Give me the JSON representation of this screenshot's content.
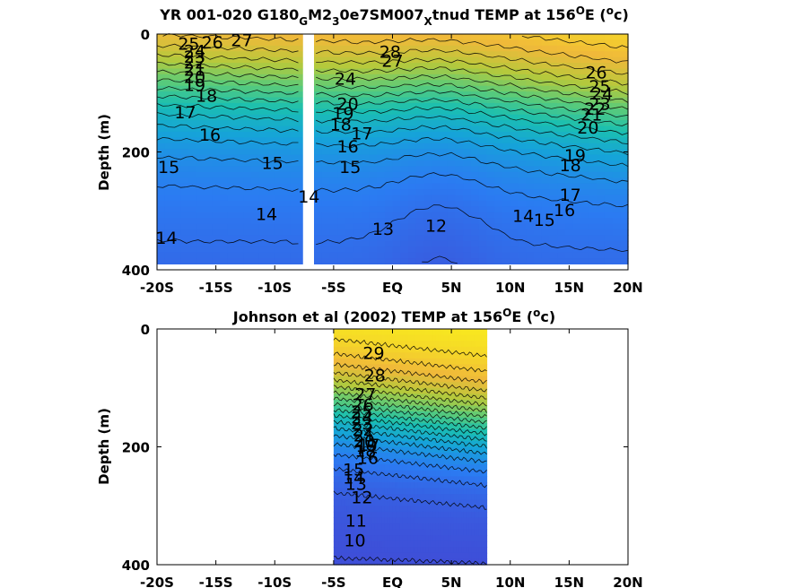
{
  "chart_data": [
    {
      "type": "heatmap",
      "title": {
        "pre": "YR 001-020 G180",
        "sub1": "G",
        "mid1": "M2",
        "sub2": "3",
        "mid2": "0e7SM007",
        "sub3": "X",
        "mid3": "tnud TEMP at 156",
        "sup1": "O",
        "mid4": "E (",
        "sup2": "o",
        "post": "c)"
      },
      "ylabel": "Depth (m)",
      "xlim": [
        -20,
        20
      ],
      "ylim": [
        0,
        400
      ],
      "y_reversed": true,
      "yticks": [
        "0",
        "200",
        "400"
      ],
      "xticks": [
        "-20S",
        "-15S",
        "-10S",
        "-5S",
        "EQ",
        "5N",
        "10N",
        "15N",
        "20N"
      ],
      "data_extent": {
        "lat_min": -20,
        "lat_max": 20,
        "depth_max": 390,
        "gap_lat": [
          -7.6,
          -6.8
        ]
      },
      "colormap": [
        "#3e4fd8",
        "#2b7bf2",
        "#16a3d9",
        "#1bbfb0",
        "#5ccb78",
        "#b5c93c",
        "#f0b93a",
        "#f8e81f"
      ],
      "temp_range": [
        10,
        29
      ],
      "contour_labels": [
        {
          "text": "25",
          "lat": -17.3,
          "depth": 16
        },
        {
          "text": "26",
          "lat": -15.3,
          "depth": 14
        },
        {
          "text": "27",
          "lat": -12.8,
          "depth": 10
        },
        {
          "text": "24",
          "lat": -16.8,
          "depth": 28
        },
        {
          "text": "23",
          "lat": -16.8,
          "depth": 38
        },
        {
          "text": "22",
          "lat": -16.8,
          "depth": 48
        },
        {
          "text": "21",
          "lat": -16.8,
          "depth": 60
        },
        {
          "text": "20",
          "lat": -16.8,
          "depth": 72
        },
        {
          "text": "19",
          "lat": -16.8,
          "depth": 86
        },
        {
          "text": "18",
          "lat": -15.8,
          "depth": 104
        },
        {
          "text": "17",
          "lat": -17.6,
          "depth": 132
        },
        {
          "text": "16",
          "lat": -15.5,
          "depth": 170
        },
        {
          "text": "15",
          "lat": -19.0,
          "depth": 225
        },
        {
          "text": "15",
          "lat": -10.2,
          "depth": 218
        },
        {
          "text": "14",
          "lat": -10.7,
          "depth": 305
        },
        {
          "text": "14",
          "lat": -19.2,
          "depth": 345
        },
        {
          "text": "14",
          "lat": -7.1,
          "depth": 275
        },
        {
          "text": "28",
          "lat": -0.2,
          "depth": 30
        },
        {
          "text": "27",
          "lat": 0.0,
          "depth": 45
        },
        {
          "text": "24",
          "lat": -4.0,
          "depth": 75
        },
        {
          "text": "20",
          "lat": -3.8,
          "depth": 118
        },
        {
          "text": "19",
          "lat": -4.2,
          "depth": 134
        },
        {
          "text": "18",
          "lat": -4.4,
          "depth": 153
        },
        {
          "text": "17",
          "lat": -2.6,
          "depth": 168
        },
        {
          "text": "16",
          "lat": -3.8,
          "depth": 190
        },
        {
          "text": "15",
          "lat": -3.6,
          "depth": 225
        },
        {
          "text": "13",
          "lat": -0.8,
          "depth": 330
        },
        {
          "text": "12",
          "lat": 3.7,
          "depth": 325
        },
        {
          "text": "26",
          "lat": 17.3,
          "depth": 65
        },
        {
          "text": "25",
          "lat": 17.6,
          "depth": 88
        },
        {
          "text": "24",
          "lat": 17.8,
          "depth": 100
        },
        {
          "text": "23",
          "lat": 17.6,
          "depth": 118
        },
        {
          "text": "22",
          "lat": 17.2,
          "depth": 126
        },
        {
          "text": "21",
          "lat": 16.9,
          "depth": 136
        },
        {
          "text": "20",
          "lat": 16.6,
          "depth": 158
        },
        {
          "text": "19",
          "lat": 15.5,
          "depth": 205
        },
        {
          "text": "18",
          "lat": 15.1,
          "depth": 222
        },
        {
          "text": "17",
          "lat": 15.1,
          "depth": 272
        },
        {
          "text": "16",
          "lat": 14.6,
          "depth": 298
        },
        {
          "text": "15",
          "lat": 12.9,
          "depth": 315
        },
        {
          "text": "14",
          "lat": 11.1,
          "depth": 308
        }
      ]
    },
    {
      "type": "heatmap",
      "title": {
        "pre": "Johnson et al (2002) TEMP at 156",
        "sup1": "O",
        "mid4": "E (",
        "sup2": "o",
        "post": "c)"
      },
      "ylabel": "Depth (m)",
      "xlim": [
        -20,
        20
      ],
      "ylim": [
        0,
        400
      ],
      "y_reversed": true,
      "yticks": [
        "0",
        "200",
        "400"
      ],
      "xticks": [
        "-20S",
        "-15S",
        "-10S",
        "-5S",
        "EQ",
        "5N",
        "10N",
        "15N",
        "20N"
      ],
      "data_extent": {
        "lat_min": -5,
        "lat_max": 8,
        "depth_max": 400
      },
      "colormap": [
        "#3e4fd8",
        "#2b7bf2",
        "#16a3d9",
        "#1bbfb0",
        "#5ccb78",
        "#b5c93c",
        "#f0b93a",
        "#f8e81f"
      ],
      "temp_range": [
        10,
        29
      ],
      "contour_labels": [
        {
          "text": "29",
          "lat": -1.6,
          "depth": 40
        },
        {
          "text": "28",
          "lat": -1.5,
          "depth": 78
        },
        {
          "text": "27",
          "lat": -2.3,
          "depth": 110
        },
        {
          "text": "26",
          "lat": -2.5,
          "depth": 128
        },
        {
          "text": "25",
          "lat": -2.6,
          "depth": 140
        },
        {
          "text": "24",
          "lat": -2.6,
          "depth": 150
        },
        {
          "text": "23",
          "lat": -2.6,
          "depth": 160
        },
        {
          "text": "22",
          "lat": -2.5,
          "depth": 170
        },
        {
          "text": "21",
          "lat": -2.4,
          "depth": 180
        },
        {
          "text": "20",
          "lat": -2.4,
          "depth": 190
        },
        {
          "text": "19",
          "lat": -2.2,
          "depth": 198
        },
        {
          "text": "18",
          "lat": -2.3,
          "depth": 206
        },
        {
          "text": "17",
          "lat": -2.0,
          "depth": 196
        },
        {
          "text": "16",
          "lat": -2.1,
          "depth": 218
        },
        {
          "text": "15",
          "lat": -3.3,
          "depth": 238
        },
        {
          "text": "14",
          "lat": -3.3,
          "depth": 252
        },
        {
          "text": "13",
          "lat": -3.1,
          "depth": 262
        },
        {
          "text": "12",
          "lat": -2.6,
          "depth": 285
        },
        {
          "text": "11",
          "lat": -3.1,
          "depth": 325
        },
        {
          "text": "10",
          "lat": -3.2,
          "depth": 358
        }
      ]
    }
  ]
}
